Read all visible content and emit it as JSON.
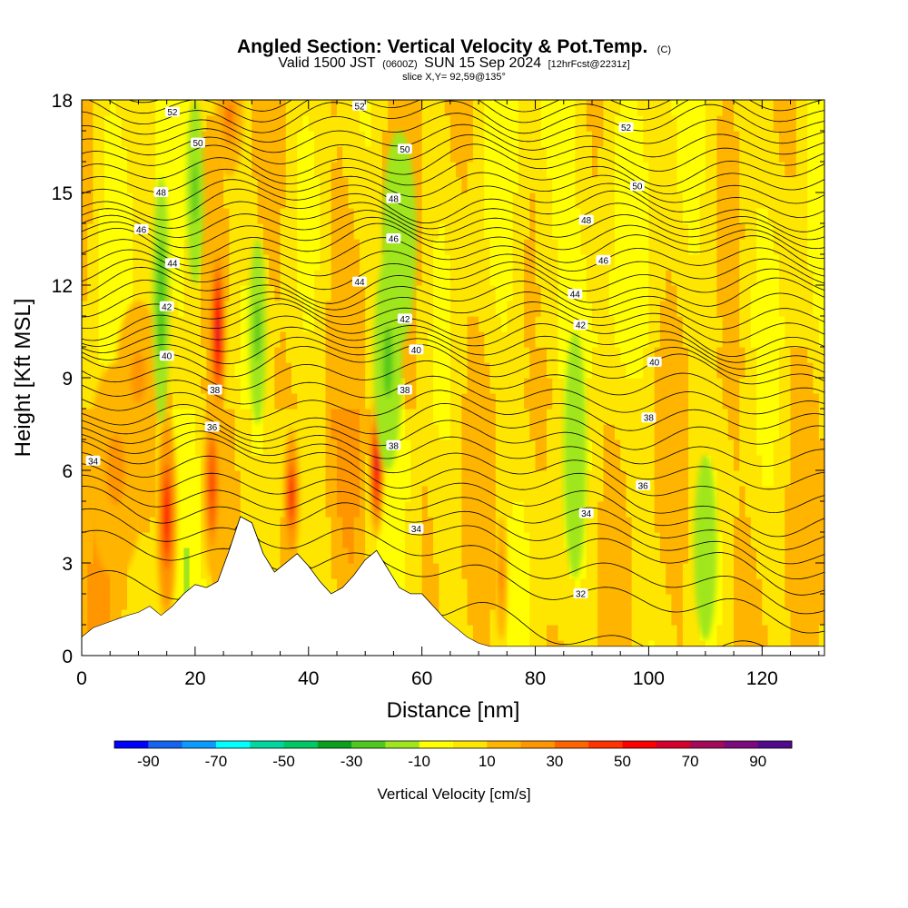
{
  "header": {
    "title": "Angled Section: Vertical Velocity & Pot.Temp.",
    "title_units": "(C)",
    "valid_prefix": "Valid 1500 JST",
    "valid_utc": "(0600Z)",
    "valid_date": "SUN 15 Sep 2024",
    "forecast": "[12hrFcst@2231z]",
    "slice": "slice X,Y= 92,59@135°"
  },
  "chart_data": {
    "type": "heatmap",
    "xlabel": "Distance [nm]",
    "ylabel": "Height [Kft MSL]",
    "xlim": [
      0,
      131
    ],
    "ylim": [
      0,
      18
    ],
    "xticks": [
      0,
      20,
      40,
      60,
      80,
      100,
      120
    ],
    "xtick_labels": [
      "0",
      "20",
      "40",
      "60",
      "80",
      "100",
      "120"
    ],
    "yticks": [
      0,
      3,
      6,
      9,
      12,
      15,
      18
    ],
    "ytick_labels": [
      "0",
      "3",
      "6",
      "9",
      "12",
      "15",
      "18"
    ],
    "colorbar": {
      "title": "Vertical Velocity [cm/s]",
      "min": -100,
      "max": 100,
      "step": 10,
      "tick_values": [
        -90,
        -70,
        -50,
        -30,
        -10,
        10,
        30,
        50,
        70,
        90
      ],
      "tick_labels": [
        "-90",
        "-70",
        "-50",
        "-30",
        "-10",
        "10",
        "30",
        "50",
        "70",
        "90"
      ],
      "colors": [
        "#0000ff",
        "#1464f0",
        "#0a9bff",
        "#00ffff",
        "#00d7a0",
        "#00c864",
        "#0aa01e",
        "#50c81e",
        "#a0e61e",
        "#ffff00",
        "#ffe600",
        "#ffb400",
        "#ff9600",
        "#ff6400",
        "#ff3200",
        "#ff0000",
        "#d7002d",
        "#a50a5a",
        "#7d0a7d",
        "#500a8c"
      ]
    },
    "terrain": [
      {
        "x": 0,
        "y": 0.6
      },
      {
        "x": 2,
        "y": 0.9
      },
      {
        "x": 5,
        "y": 1.1
      },
      {
        "x": 8,
        "y": 1.3
      },
      {
        "x": 10,
        "y": 1.4
      },
      {
        "x": 12,
        "y": 1.6
      },
      {
        "x": 14,
        "y": 1.3
      },
      {
        "x": 16,
        "y": 1.6
      },
      {
        "x": 18,
        "y": 2.0
      },
      {
        "x": 20,
        "y": 2.3
      },
      {
        "x": 22,
        "y": 2.2
      },
      {
        "x": 24,
        "y": 2.4
      },
      {
        "x": 26,
        "y": 3.4
      },
      {
        "x": 28,
        "y": 4.5
      },
      {
        "x": 30,
        "y": 4.3
      },
      {
        "x": 32,
        "y": 3.3
      },
      {
        "x": 34,
        "y": 2.7
      },
      {
        "x": 36,
        "y": 3.0
      },
      {
        "x": 38,
        "y": 3.3
      },
      {
        "x": 40,
        "y": 2.9
      },
      {
        "x": 42,
        "y": 2.4
      },
      {
        "x": 44,
        "y": 2.0
      },
      {
        "x": 46,
        "y": 2.2
      },
      {
        "x": 48,
        "y": 2.6
      },
      {
        "x": 50,
        "y": 3.1
      },
      {
        "x": 52,
        "y": 3.4
      },
      {
        "x": 54,
        "y": 2.8
      },
      {
        "x": 56,
        "y": 2.2
      },
      {
        "x": 58,
        "y": 2.0
      },
      {
        "x": 60,
        "y": 2.0
      },
      {
        "x": 62,
        "y": 1.6
      },
      {
        "x": 64,
        "y": 1.2
      },
      {
        "x": 66,
        "y": 0.9
      },
      {
        "x": 68,
        "y": 0.6
      },
      {
        "x": 70,
        "y": 0.4
      },
      {
        "x": 72,
        "y": 0.3
      },
      {
        "x": 131,
        "y": 0.3
      }
    ],
    "updrafts": [
      {
        "x": 15,
        "y": 4.5,
        "w": 1.8,
        "h": 3.5,
        "v": 55
      },
      {
        "x": 23,
        "y": 5.5,
        "w": 1.6,
        "h": 3.0,
        "v": 45
      },
      {
        "x": 24,
        "y": 10.5,
        "w": 1.5,
        "h": 3.0,
        "v": 60
      },
      {
        "x": 26,
        "y": 17.5,
        "w": 2.5,
        "h": 2.0,
        "v": 30
      },
      {
        "x": 37,
        "y": 5.2,
        "w": 1.4,
        "h": 2.2,
        "v": 55
      },
      {
        "x": 52,
        "y": 6.2,
        "w": 1.3,
        "h": 2.4,
        "v": 60
      },
      {
        "x": 6,
        "y": 6.0,
        "w": 5.0,
        "h": 3.5,
        "v": 25
      },
      {
        "x": 74,
        "y": 2.5,
        "w": 1.0,
        "h": 2.0,
        "v": 30
      },
      {
        "x": 10,
        "y": 9.0,
        "w": 4.0,
        "h": 2.5,
        "v": 22
      }
    ],
    "downdrafts": [
      {
        "x": 14,
        "y": 11.5,
        "w": 1.5,
        "h": 4.0,
        "v": -30
      },
      {
        "x": 20,
        "y": 15.0,
        "w": 1.5,
        "h": 3.0,
        "v": -25
      },
      {
        "x": 31,
        "y": 10.5,
        "w": 1.5,
        "h": 3.0,
        "v": -25
      },
      {
        "x": 54,
        "y": 9.5,
        "w": 2.5,
        "h": 3.5,
        "v": -25
      },
      {
        "x": 56,
        "y": 13.5,
        "w": 3.0,
        "h": 3.5,
        "v": -18
      },
      {
        "x": 87,
        "y": 6.5,
        "w": 2.0,
        "h": 4.0,
        "v": -18
      },
      {
        "x": 110,
        "y": 3.5,
        "w": 2.0,
        "h": 3.0,
        "v": -16
      }
    ],
    "theta_levels": [
      32,
      34,
      36,
      38,
      40,
      42,
      44,
      46,
      48,
      50,
      52
    ],
    "contour_labels": [
      {
        "x": 2,
        "y": 6.3,
        "text": "34"
      },
      {
        "x": 59,
        "y": 4.1,
        "text": "34"
      },
      {
        "x": 89,
        "y": 4.6,
        "text": "34"
      },
      {
        "x": 88,
        "y": 2.0,
        "text": "32"
      },
      {
        "x": 23,
        "y": 7.4,
        "text": "36"
      },
      {
        "x": 99,
        "y": 5.5,
        "text": "36"
      },
      {
        "x": 23.5,
        "y": 8.6,
        "text": "38"
      },
      {
        "x": 55,
        "y": 6.8,
        "text": "38"
      },
      {
        "x": 57,
        "y": 8.6,
        "text": "38"
      },
      {
        "x": 100,
        "y": 7.7,
        "text": "38"
      },
      {
        "x": 15,
        "y": 9.7,
        "text": "40"
      },
      {
        "x": 59,
        "y": 9.9,
        "text": "40"
      },
      {
        "x": 101,
        "y": 9.5,
        "text": "40"
      },
      {
        "x": 15,
        "y": 11.3,
        "text": "42"
      },
      {
        "x": 57,
        "y": 10.9,
        "text": "42"
      },
      {
        "x": 88,
        "y": 10.7,
        "text": "42"
      },
      {
        "x": 16,
        "y": 12.7,
        "text": "44"
      },
      {
        "x": 49,
        "y": 12.1,
        "text": "44"
      },
      {
        "x": 87,
        "y": 11.7,
        "text": "44"
      },
      {
        "x": 10.5,
        "y": 13.8,
        "text": "46"
      },
      {
        "x": 55,
        "y": 13.5,
        "text": "46"
      },
      {
        "x": 92,
        "y": 12.8,
        "text": "46"
      },
      {
        "x": 14,
        "y": 15.0,
        "text": "48"
      },
      {
        "x": 55,
        "y": 14.8,
        "text": "48"
      },
      {
        "x": 89,
        "y": 14.1,
        "text": "48"
      },
      {
        "x": 20.5,
        "y": 16.6,
        "text": "50"
      },
      {
        "x": 57,
        "y": 16.4,
        "text": "50"
      },
      {
        "x": 98,
        "y": 15.2,
        "text": "50"
      },
      {
        "x": 16,
        "y": 17.6,
        "text": "52"
      },
      {
        "x": 49,
        "y": 17.8,
        "text": "52"
      },
      {
        "x": 96,
        "y": 17.1,
        "text": "52"
      }
    ]
  }
}
